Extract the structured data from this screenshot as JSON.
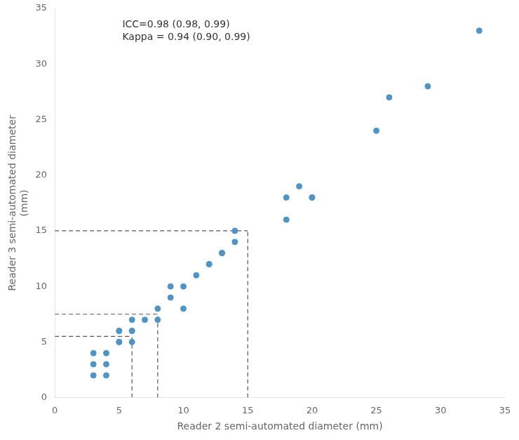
{
  "chart_data": {
    "type": "scatter",
    "x": [
      3,
      3,
      3,
      4,
      4,
      4,
      5,
      5,
      5,
      5,
      6,
      6,
      6,
      6,
      7,
      8,
      8,
      9,
      9,
      10,
      10,
      11,
      12,
      12,
      13,
      13,
      14,
      14,
      18,
      18,
      19,
      20,
      20,
      25,
      26,
      29,
      33
    ],
    "values": [
      2,
      3,
      4,
      2,
      3,
      4,
      5,
      5,
      6,
      6,
      5,
      6,
      6,
      7,
      7,
      7,
      8,
      9,
      10,
      10,
      8,
      11,
      12,
      12,
      13,
      13,
      14,
      15,
      18,
      16,
      19,
      18,
      18,
      24,
      27,
      28,
      33
    ],
    "color": "#4d94c8",
    "threshold_lines": {
      "x": [
        6,
        8,
        15
      ],
      "y": [
        5.5,
        7.5,
        15
      ],
      "color": "#555555",
      "line_style": "dashed"
    },
    "xlabel": "Reader 2 semi-automated diameter (mm)",
    "ylabel": "Reader 3 semi-automated diameter\n(mm)",
    "annotation": [
      "ICC=0.98 (0.98, 0.99)",
      "Kappa = 0.94 (0.90, 0.99)"
    ],
    "xlim": [
      0,
      35
    ],
    "ylim": [
      0,
      35
    ],
    "xticks": [
      0,
      5,
      10,
      15,
      20,
      25,
      30,
      35
    ],
    "yticks": [
      0,
      5,
      10,
      15,
      20,
      25,
      30,
      35
    ],
    "grid": false
  }
}
